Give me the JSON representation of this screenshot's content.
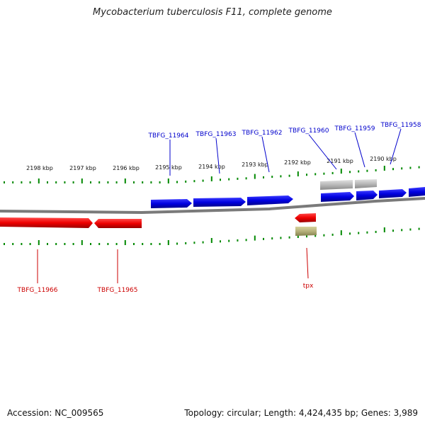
{
  "title": "Mycobacterium tuberculosis F11, complete genome",
  "footer": {
    "accession": "Accession: NC_009565",
    "stats": "Topology: circular; Length: 4,424,435 bp; Genes: 3,989"
  },
  "colors": {
    "forward": "#0000dd",
    "reverse": "#ee0000",
    "grey_gene": "#b0b0b0",
    "olive_gene": "#b5b07a",
    "tick": "#008800",
    "backbone": "#888888"
  },
  "ticks": [
    {
      "label": "2198 kbp"
    },
    {
      "label": "2197 kbp"
    },
    {
      "label": "2196 kbp"
    },
    {
      "label": "2195 kbp"
    },
    {
      "label": "2194 kbp"
    },
    {
      "label": "2193 kbp"
    },
    {
      "label": "2192 kbp"
    },
    {
      "label": "2191 kbp"
    },
    {
      "label": "2190 kbp"
    }
  ],
  "forward_labels": [
    {
      "text": "TBFG_11964"
    },
    {
      "text": "TBFG_11963"
    },
    {
      "text": "TBFG_11962"
    },
    {
      "text": "TBFG_11960"
    },
    {
      "text": "TBFG_11959"
    },
    {
      "text": "TBFG_11958"
    }
  ],
  "reverse_labels": [
    {
      "text": "TBFG_11966"
    },
    {
      "text": "TBFG_11965"
    },
    {
      "text": "tpx"
    }
  ]
}
